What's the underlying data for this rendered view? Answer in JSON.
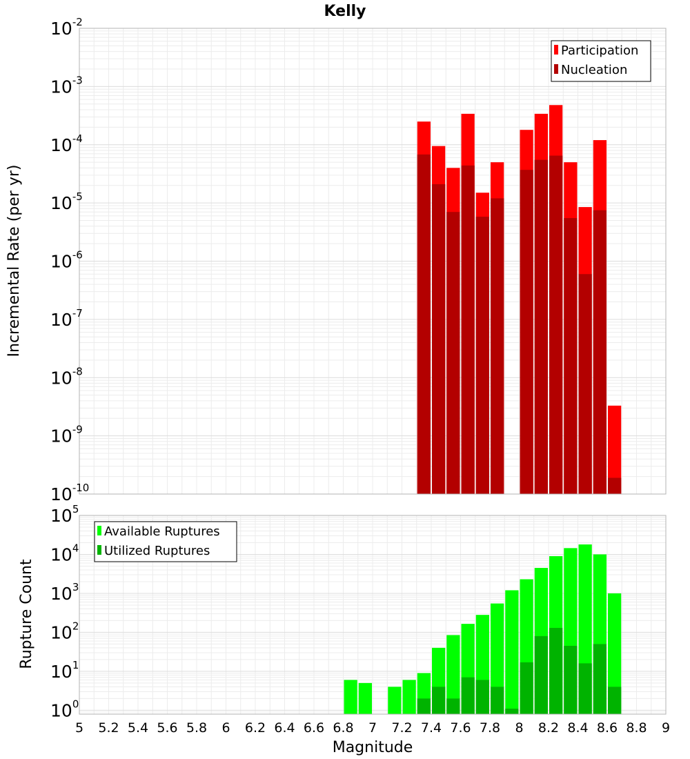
{
  "chart_data": {
    "title": "Kelly",
    "xlabel": "Magnitude",
    "xlim": [
      5,
      9
    ],
    "xticks": [
      "5",
      "5.2",
      "5.4",
      "5.6",
      "5.8",
      "6",
      "6.2",
      "6.4",
      "6.6",
      "6.8",
      "7",
      "7.2",
      "7.4",
      "7.6",
      "7.8",
      "8",
      "8.2",
      "8.4",
      "8.6",
      "8.8",
      "9"
    ],
    "bin_width": 0.1,
    "panels": [
      {
        "type": "bar",
        "scale": "log",
        "ylabel": "Incremental Rate (per yr)",
        "ylim_exp": [
          -10,
          -2
        ],
        "yticks": [
          {
            "base": "10",
            "exp": "-10"
          },
          {
            "base": "10",
            "exp": "-9"
          },
          {
            "base": "10",
            "exp": "-8"
          },
          {
            "base": "10",
            "exp": "-7"
          },
          {
            "base": "10",
            "exp": "-6"
          },
          {
            "base": "10",
            "exp": "-5"
          },
          {
            "base": "10",
            "exp": "-4"
          },
          {
            "base": "10",
            "exp": "-3"
          },
          {
            "base": "10",
            "exp": "-2"
          }
        ],
        "legend_position": "top-right",
        "grid": true,
        "series": [
          {
            "name": "Participation",
            "color": "#ff0000",
            "points": [
              [
                7.35,
                0.00025
              ],
              [
                7.45,
                9.5e-05
              ],
              [
                7.55,
                4e-05
              ],
              [
                7.65,
                0.00034
              ],
              [
                7.75,
                1.5e-05
              ],
              [
                7.85,
                5e-05
              ],
              [
                8.05,
                0.00018
              ],
              [
                8.15,
                0.00034
              ],
              [
                8.25,
                0.00048
              ],
              [
                8.35,
                5e-05
              ],
              [
                8.45,
                8.5e-06
              ],
              [
                8.55,
                0.00012
              ],
              [
                8.65,
                3.3e-09
              ]
            ]
          },
          {
            "name": "Nucleation",
            "color": "#b30000",
            "points": [
              [
                7.35,
                6.8e-05
              ],
              [
                7.45,
                2.1e-05
              ],
              [
                7.55,
                7e-06
              ],
              [
                7.65,
                4.4e-05
              ],
              [
                7.75,
                5.8e-06
              ],
              [
                7.85,
                1.2e-05
              ],
              [
                8.05,
                3.7e-05
              ],
              [
                8.15,
                5.5e-05
              ],
              [
                8.25,
                6.5e-05
              ],
              [
                8.35,
                5.5e-06
              ],
              [
                8.45,
                6e-07
              ],
              [
                8.55,
                7.5e-06
              ],
              [
                8.65,
                1.9e-10
              ]
            ]
          }
        ]
      },
      {
        "type": "bar",
        "scale": "log",
        "ylabel": "Rupture Count",
        "ylim_exp": [
          -0.1,
          5
        ],
        "yticks": [
          {
            "base": "10",
            "exp": "0"
          },
          {
            "base": "10",
            "exp": "1"
          },
          {
            "base": "10",
            "exp": "2"
          },
          {
            "base": "10",
            "exp": "3"
          },
          {
            "base": "10",
            "exp": "4"
          },
          {
            "base": "10",
            "exp": "5"
          }
        ],
        "legend_position": "top-left",
        "grid": true,
        "series": [
          {
            "name": "Available Ruptures",
            "color": "#00ff00",
            "points": [
              [
                6.85,
                6
              ],
              [
                6.95,
                5
              ],
              [
                7.15,
                4
              ],
              [
                7.25,
                6
              ],
              [
                7.35,
                9
              ],
              [
                7.45,
                40
              ],
              [
                7.55,
                85
              ],
              [
                7.65,
                165
              ],
              [
                7.75,
                280
              ],
              [
                7.85,
                550
              ],
              [
                7.95,
                1200
              ],
              [
                8.05,
                2300
              ],
              [
                8.15,
                4500
              ],
              [
                8.25,
                9000
              ],
              [
                8.35,
                14500
              ],
              [
                8.45,
                18000
              ],
              [
                8.55,
                10000
              ],
              [
                8.65,
                1000
              ]
            ]
          },
          {
            "name": "Utilized Ruptures",
            "color": "#00b300",
            "points": [
              [
                7.35,
                2
              ],
              [
                7.45,
                4
              ],
              [
                7.55,
                2
              ],
              [
                7.65,
                7
              ],
              [
                7.75,
                6
              ],
              [
                7.85,
                4
              ],
              [
                7.95,
                1.1
              ],
              [
                8.05,
                17
              ],
              [
                8.15,
                80
              ],
              [
                8.25,
                130
              ],
              [
                8.35,
                45
              ],
              [
                8.45,
                16
              ],
              [
                8.55,
                50
              ],
              [
                8.65,
                4
              ]
            ]
          }
        ]
      }
    ]
  }
}
